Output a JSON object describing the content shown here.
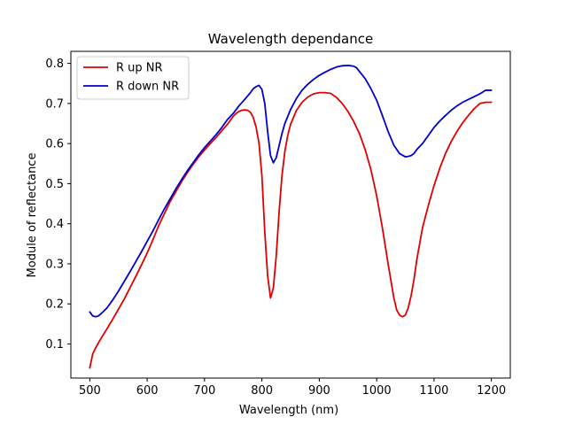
{
  "chart_data": {
    "type": "line",
    "title": "Wavelength dependance",
    "xlabel": "Wavelength (nm)",
    "ylabel": "Module of reflectance",
    "xlim": [
      467,
      1233
    ],
    "ylim": [
      0.015,
      0.83
    ],
    "xticks": [
      500,
      600,
      700,
      800,
      900,
      1000,
      1100,
      1200
    ],
    "yticks": [
      0.1,
      0.2,
      0.3,
      0.4,
      0.5,
      0.6,
      0.7,
      0.8
    ],
    "xtick_labels": [
      "500",
      "600",
      "700",
      "800",
      "900",
      "1000",
      "1100",
      "1200"
    ],
    "ytick_labels": [
      "0.1",
      "0.2",
      "0.3",
      "0.4",
      "0.5",
      "0.6",
      "0.7",
      "0.8"
    ],
    "grid": false,
    "legend_position": "top-left",
    "series": [
      {
        "name": "R up NR",
        "color": "#e00000",
        "x": [
          500,
          505,
          510,
          520,
          530,
          540,
          550,
          560,
          570,
          580,
          590,
          600,
          610,
          620,
          630,
          640,
          650,
          660,
          670,
          680,
          690,
          700,
          710,
          720,
          730,
          740,
          750,
          755,
          760,
          765,
          770,
          775,
          780,
          785,
          790,
          795,
          800,
          805,
          810,
          815,
          820,
          825,
          830,
          835,
          840,
          845,
          850,
          860,
          870,
          880,
          890,
          900,
          910,
          920,
          930,
          940,
          950,
          960,
          970,
          980,
          990,
          1000,
          1010,
          1020,
          1030,
          1035,
          1040,
          1045,
          1050,
          1055,
          1060,
          1065,
          1070,
          1080,
          1090,
          1100,
          1110,
          1120,
          1130,
          1140,
          1150,
          1160,
          1170,
          1180,
          1190,
          1200
        ],
        "y": [
          0.04,
          0.075,
          0.09,
          0.115,
          0.138,
          0.162,
          0.187,
          0.212,
          0.24,
          0.268,
          0.297,
          0.327,
          0.36,
          0.395,
          0.425,
          0.455,
          0.48,
          0.505,
          0.527,
          0.548,
          0.567,
          0.584,
          0.6,
          0.615,
          0.632,
          0.648,
          0.668,
          0.675,
          0.68,
          0.683,
          0.684,
          0.683,
          0.678,
          0.665,
          0.64,
          0.6,
          0.52,
          0.38,
          0.27,
          0.215,
          0.24,
          0.32,
          0.43,
          0.52,
          0.58,
          0.62,
          0.648,
          0.682,
          0.703,
          0.716,
          0.724,
          0.727,
          0.727,
          0.725,
          0.715,
          0.7,
          0.68,
          0.655,
          0.625,
          0.585,
          0.535,
          0.47,
          0.39,
          0.3,
          0.215,
          0.185,
          0.172,
          0.168,
          0.172,
          0.19,
          0.22,
          0.26,
          0.31,
          0.39,
          0.445,
          0.495,
          0.538,
          0.575,
          0.605,
          0.63,
          0.652,
          0.67,
          0.687,
          0.7,
          0.703,
          0.703
        ]
      },
      {
        "name": "R down NR",
        "color": "#0000cc",
        "x": [
          500,
          505,
          510,
          515,
          520,
          530,
          540,
          550,
          560,
          570,
          580,
          590,
          600,
          610,
          620,
          630,
          640,
          650,
          660,
          670,
          680,
          690,
          700,
          710,
          720,
          730,
          740,
          750,
          760,
          770,
          780,
          785,
          790,
          795,
          800,
          805,
          810,
          815,
          820,
          825,
          830,
          835,
          840,
          850,
          860,
          870,
          880,
          890,
          900,
          910,
          920,
          930,
          940,
          950,
          960,
          965,
          970,
          980,
          990,
          1000,
          1010,
          1020,
          1030,
          1040,
          1050,
          1055,
          1060,
          1065,
          1070,
          1080,
          1090,
          1100,
          1110,
          1120,
          1130,
          1140,
          1150,
          1160,
          1170,
          1180,
          1190,
          1200
        ],
        "y": [
          0.18,
          0.17,
          0.168,
          0.17,
          0.176,
          0.19,
          0.21,
          0.232,
          0.256,
          0.28,
          0.305,
          0.33,
          0.356,
          0.382,
          0.41,
          0.437,
          0.462,
          0.487,
          0.51,
          0.532,
          0.552,
          0.572,
          0.59,
          0.606,
          0.622,
          0.64,
          0.66,
          0.675,
          0.694,
          0.71,
          0.727,
          0.737,
          0.742,
          0.745,
          0.735,
          0.7,
          0.63,
          0.57,
          0.552,
          0.565,
          0.595,
          0.625,
          0.65,
          0.685,
          0.712,
          0.733,
          0.748,
          0.76,
          0.77,
          0.778,
          0.785,
          0.791,
          0.794,
          0.795,
          0.793,
          0.789,
          0.78,
          0.762,
          0.737,
          0.708,
          0.67,
          0.63,
          0.596,
          0.575,
          0.567,
          0.568,
          0.57,
          0.575,
          0.585,
          0.6,
          0.62,
          0.64,
          0.656,
          0.67,
          0.683,
          0.694,
          0.703,
          0.71,
          0.717,
          0.724,
          0.733,
          0.733
        ]
      }
    ]
  }
}
